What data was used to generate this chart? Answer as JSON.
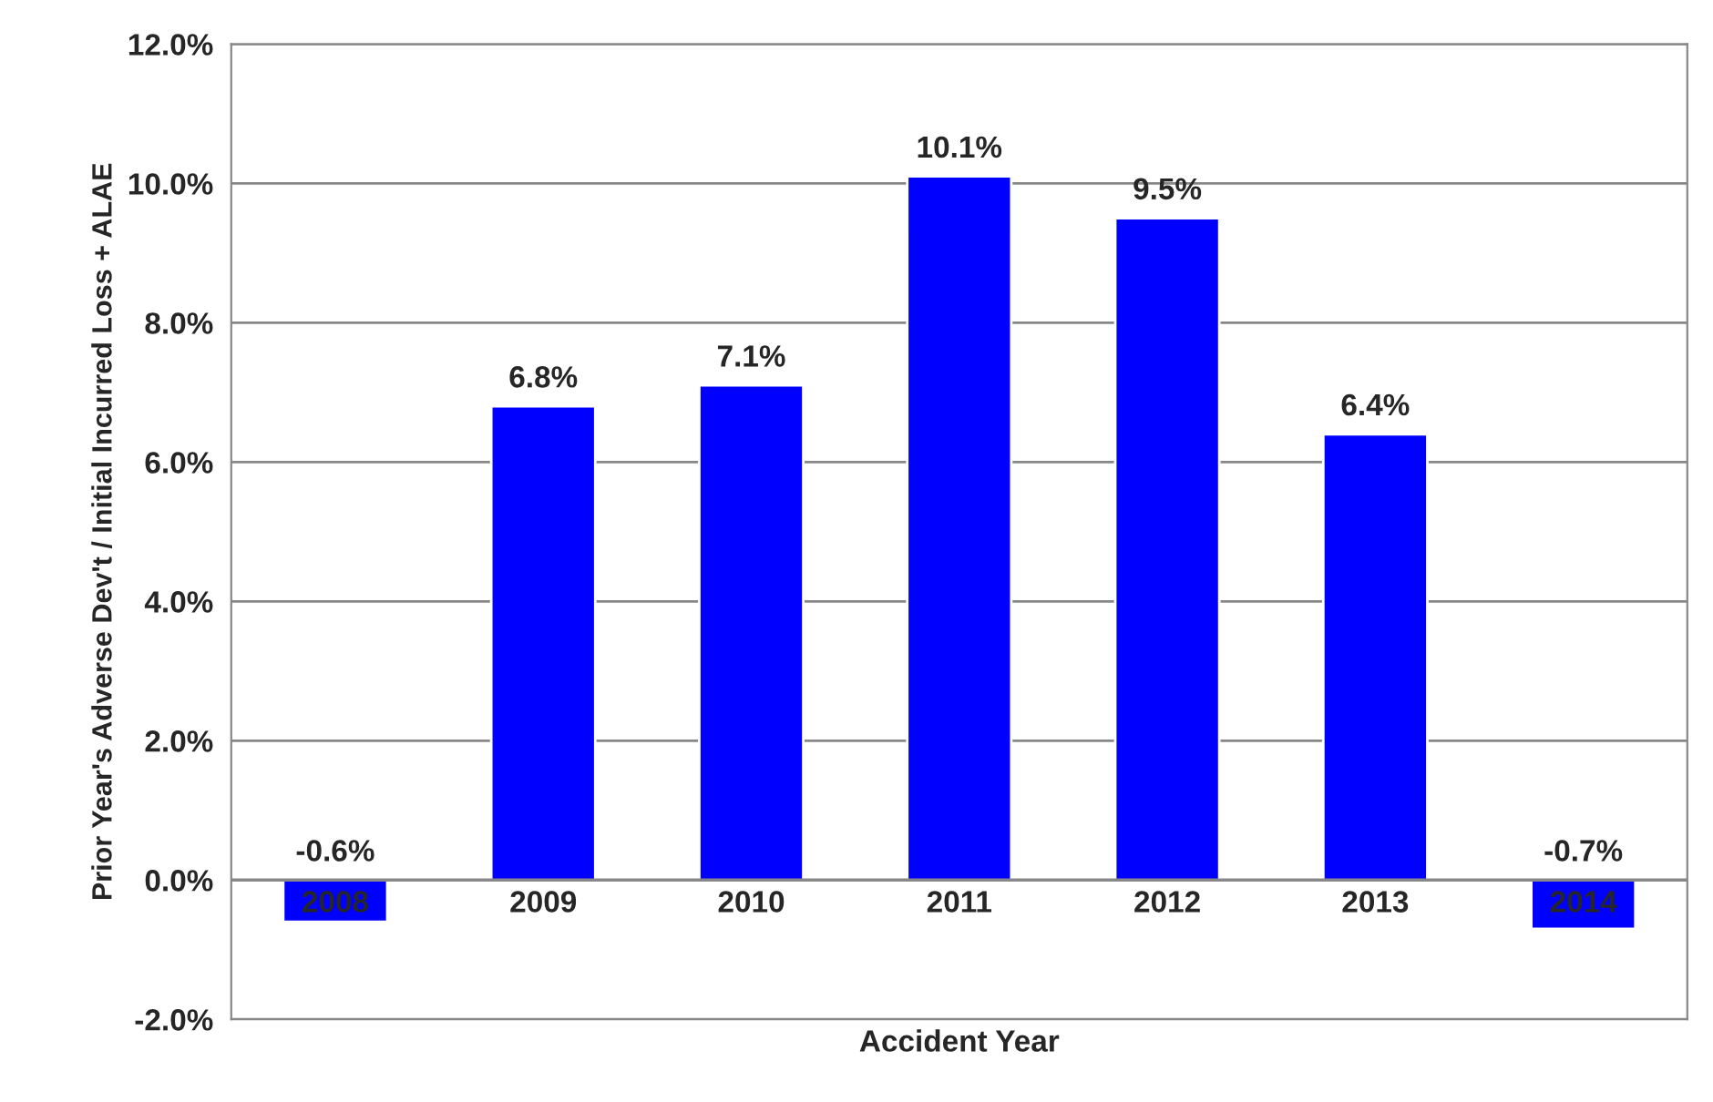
{
  "chart_data": {
    "type": "bar",
    "xlabel": "Accident Year",
    "ylabel": "Prior Year's Adverse Dev't / Initial Incurred Loss + ALAE",
    "categories": [
      "2008",
      "2009",
      "2010",
      "2011",
      "2012",
      "2013",
      "2014"
    ],
    "values": [
      -0.6,
      6.8,
      7.1,
      10.1,
      9.5,
      6.4,
      -0.7
    ],
    "value_labels": [
      "-0.6%",
      "6.8%",
      "7.1%",
      "10.1%",
      "9.5%",
      "6.4%",
      "-0.7%"
    ],
    "color": "#0000ff",
    "ylim": [
      -2,
      12
    ],
    "yticks": [
      {
        "value": -2,
        "label": "-2.0%"
      },
      {
        "value": 0,
        "label": "0.0%"
      },
      {
        "value": 2,
        "label": "2.0%"
      },
      {
        "value": 4,
        "label": "4.0%"
      },
      {
        "value": 6,
        "label": "6.0%"
      },
      {
        "value": 8,
        "label": "8.0%"
      },
      {
        "value": 10,
        "label": "10.0%"
      },
      {
        "value": 12,
        "label": "12.0%"
      }
    ],
    "grid": "y"
  }
}
